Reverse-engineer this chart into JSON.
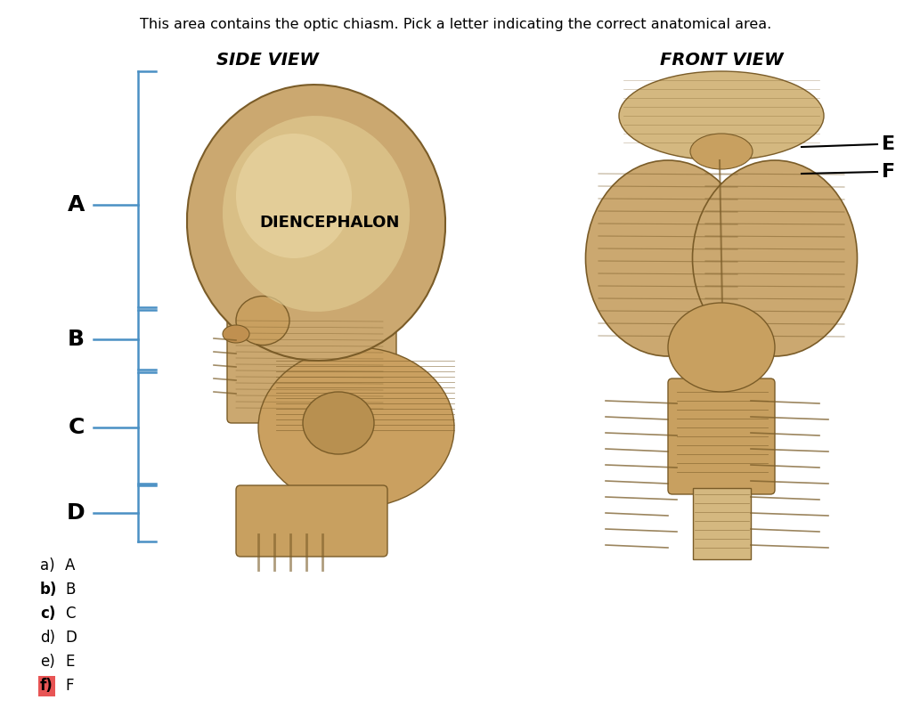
{
  "background_color": "#ffffff",
  "title_text": "This area contains the optic chiasm. Pick a letter indicating the correct anatomical area.",
  "title_fontsize": 11.5,
  "side_view_title": "SIDE VIEW",
  "front_view_title": "FRONT VIEW",
  "bracket_color": "#4a90c4",
  "bracket_linewidth": 1.8,
  "answer_items": [
    {
      "label": "a)",
      "bold": false,
      "answer": "A",
      "highlight": false
    },
    {
      "label": "b)",
      "bold": true,
      "answer": "B",
      "highlight": false
    },
    {
      "label": "c)",
      "bold": true,
      "answer": "C",
      "highlight": false
    },
    {
      "label": "d)",
      "bold": false,
      "answer": "D",
      "highlight": false
    },
    {
      "label": "e)",
      "bold": false,
      "answer": "E",
      "highlight": false
    },
    {
      "label": "f)",
      "bold": true,
      "answer": "F",
      "highlight": true
    }
  ],
  "highlight_color": "#e85555",
  "diencephalon_label": "DIENCEPHALON",
  "brain_tan": "#d4b896",
  "brain_dark": "#b8954a",
  "brain_light": "#e8d5a8",
  "brain_mid": "#c8a870",
  "line_color": "#7a5c28"
}
